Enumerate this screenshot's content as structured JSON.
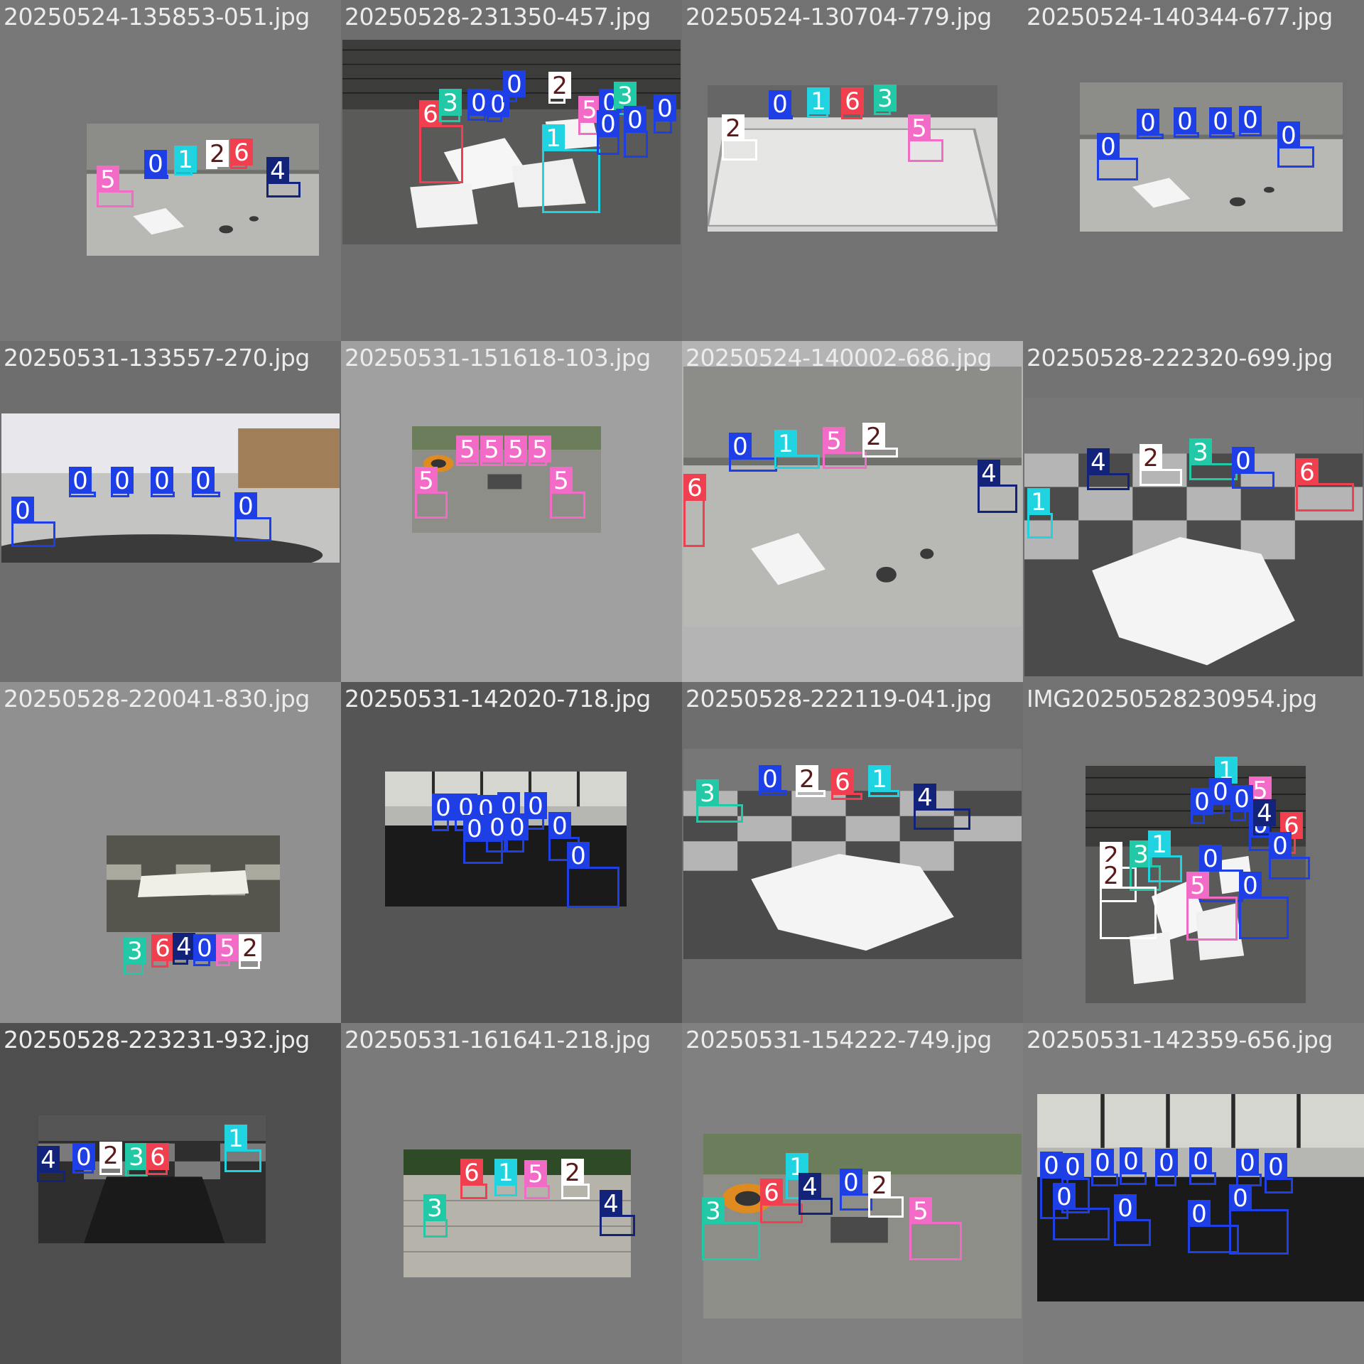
{
  "class_colors": {
    "0": "#1f3fe6",
    "1": "#1fd3e0",
    "2": "#ffffff",
    "3": "#22c9a6",
    "4": "#14237a",
    "5": "#f26bc6",
    "6": "#f0404f"
  },
  "tiles": [
    {
      "filename": "20250524-135853-051.jpg",
      "bg": "#787878",
      "scene": "floor-light",
      "boxes": [
        {
          "label": "5"
        },
        {
          "label": "0"
        },
        {
          "label": "1"
        },
        {
          "label": "2"
        },
        {
          "label": "6"
        },
        {
          "label": "4"
        }
      ]
    },
    {
      "filename": "20250528-231350-457.jpg",
      "bg": "#6e6e6e",
      "scene": "netted-papers",
      "boxes": [
        {
          "label": "6"
        },
        {
          "label": "3"
        },
        {
          "label": "0"
        },
        {
          "label": "0"
        },
        {
          "label": "0"
        },
        {
          "label": "2"
        },
        {
          "label": "5"
        },
        {
          "label": "0"
        },
        {
          "label": "3"
        },
        {
          "label": "0"
        },
        {
          "label": "1"
        },
        {
          "label": "0"
        },
        {
          "label": "0"
        }
      ]
    },
    {
      "filename": "20250524-130704-779.jpg",
      "bg": "#727272",
      "scene": "floor-bright",
      "boxes": [
        {
          "label": "2"
        },
        {
          "label": "0"
        },
        {
          "label": "1"
        },
        {
          "label": "6"
        },
        {
          "label": "3"
        },
        {
          "label": "5"
        }
      ]
    },
    {
      "filename": "20250524-140344-677.jpg",
      "bg": "#727272",
      "scene": "floor-light",
      "boxes": [
        {
          "label": "0"
        },
        {
          "label": "0"
        },
        {
          "label": "0"
        },
        {
          "label": "0"
        },
        {
          "label": "0"
        },
        {
          "label": "0"
        }
      ]
    },
    {
      "filename": "20250531-133557-270.jpg",
      "bg": "#6e6e6e",
      "scene": "floor-close",
      "boxes": [
        {
          "label": "0"
        },
        {
          "label": "0"
        },
        {
          "label": "0"
        },
        {
          "label": "0"
        },
        {
          "label": "0"
        },
        {
          "label": "0"
        }
      ]
    },
    {
      "filename": "20250531-151618-103.jpg",
      "bg": "#a0a0a0",
      "scene": "outdoor-tools",
      "boxes": [
        {
          "label": "5"
        },
        {
          "label": "5"
        },
        {
          "label": "5"
        },
        {
          "label": "5"
        },
        {
          "label": "5"
        },
        {
          "label": "5"
        }
      ]
    },
    {
      "filename": "20250524-140002-686.jpg",
      "bg": "#b4b4b4",
      "scene": "floor-light",
      "boxes": [
        {
          "label": "6"
        },
        {
          "label": "0"
        },
        {
          "label": "1"
        },
        {
          "label": "5"
        },
        {
          "label": "2"
        },
        {
          "label": "4"
        }
      ]
    },
    {
      "filename": "20250528-222320-699.jpg",
      "bg": "#727272",
      "scene": "checker-papers",
      "boxes": [
        {
          "label": "4"
        },
        {
          "label": "2"
        },
        {
          "label": "3"
        },
        {
          "label": "0"
        },
        {
          "label": "6"
        },
        {
          "label": "1"
        }
      ]
    },
    {
      "filename": "20250528-220041-830.jpg",
      "bg": "#909090",
      "scene": "checker-small",
      "boxes": [
        {
          "label": "3"
        },
        {
          "label": "6"
        },
        {
          "label": "4"
        },
        {
          "label": "0"
        },
        {
          "label": "5"
        },
        {
          "label": "2"
        }
      ]
    },
    {
      "filename": "20250531-142020-718.jpg",
      "bg": "#555555",
      "scene": "indoor-window",
      "boxes": [
        {
          "label": "0"
        },
        {
          "label": "0"
        },
        {
          "label": "0"
        },
        {
          "label": "0"
        },
        {
          "label": "0"
        },
        {
          "label": "0"
        },
        {
          "label": "0"
        },
        {
          "label": "0"
        },
        {
          "label": "0"
        },
        {
          "label": "0"
        }
      ]
    },
    {
      "filename": "20250528-222119-041.jpg",
      "bg": "#6e6e6e",
      "scene": "checker-papers",
      "boxes": [
        {
          "label": "3"
        },
        {
          "label": "0"
        },
        {
          "label": "2"
        },
        {
          "label": "6"
        },
        {
          "label": "1"
        },
        {
          "label": "4"
        }
      ]
    },
    {
      "filename": "IMG20250528230954.jpg",
      "bg": "#727272",
      "scene": "netted-papers",
      "boxes": [
        {
          "label": "1"
        },
        {
          "label": "0"
        },
        {
          "label": "5"
        },
        {
          "label": "0"
        },
        {
          "label": "0"
        },
        {
          "label": "0"
        },
        {
          "label": "4"
        },
        {
          "label": "6"
        },
        {
          "label": "0"
        },
        {
          "label": "2"
        },
        {
          "label": "3"
        },
        {
          "label": "1"
        },
        {
          "label": "0"
        },
        {
          "label": "2"
        },
        {
          "label": "5"
        },
        {
          "label": "0"
        }
      ]
    },
    {
      "filename": "20250528-223231-932.jpg",
      "bg": "#4e4e4e",
      "scene": "checker-dark",
      "boxes": [
        {
          "label": "4"
        },
        {
          "label": "0"
        },
        {
          "label": "2"
        },
        {
          "label": "3"
        },
        {
          "label": "6"
        },
        {
          "label": "1"
        }
      ]
    },
    {
      "filename": "20250531-161641-218.jpg",
      "bg": "#7a7a7a",
      "scene": "outdoor-terrace",
      "boxes": [
        {
          "label": "3"
        },
        {
          "label": "6"
        },
        {
          "label": "1"
        },
        {
          "label": "5"
        },
        {
          "label": "2"
        },
        {
          "label": "4"
        }
      ]
    },
    {
      "filename": "20250531-154222-749.jpg",
      "bg": "#808080",
      "scene": "outdoor-tools",
      "boxes": [
        {
          "label": "3"
        },
        {
          "label": "1"
        },
        {
          "label": "6"
        },
        {
          "label": "4"
        },
        {
          "label": "0"
        },
        {
          "label": "2"
        },
        {
          "label": "5"
        }
      ]
    },
    {
      "filename": "20250531-142359-656.jpg",
      "bg": "#7c7c7c",
      "scene": "indoor-window",
      "boxes": [
        {
          "label": "0"
        },
        {
          "label": "0"
        },
        {
          "label": "0"
        },
        {
          "label": "0"
        },
        {
          "label": "0"
        },
        {
          "label": "0"
        },
        {
          "label": "0"
        },
        {
          "label": "0"
        },
        {
          "label": "0"
        },
        {
          "label": "0"
        },
        {
          "label": "0"
        },
        {
          "label": "0"
        }
      ]
    }
  ]
}
